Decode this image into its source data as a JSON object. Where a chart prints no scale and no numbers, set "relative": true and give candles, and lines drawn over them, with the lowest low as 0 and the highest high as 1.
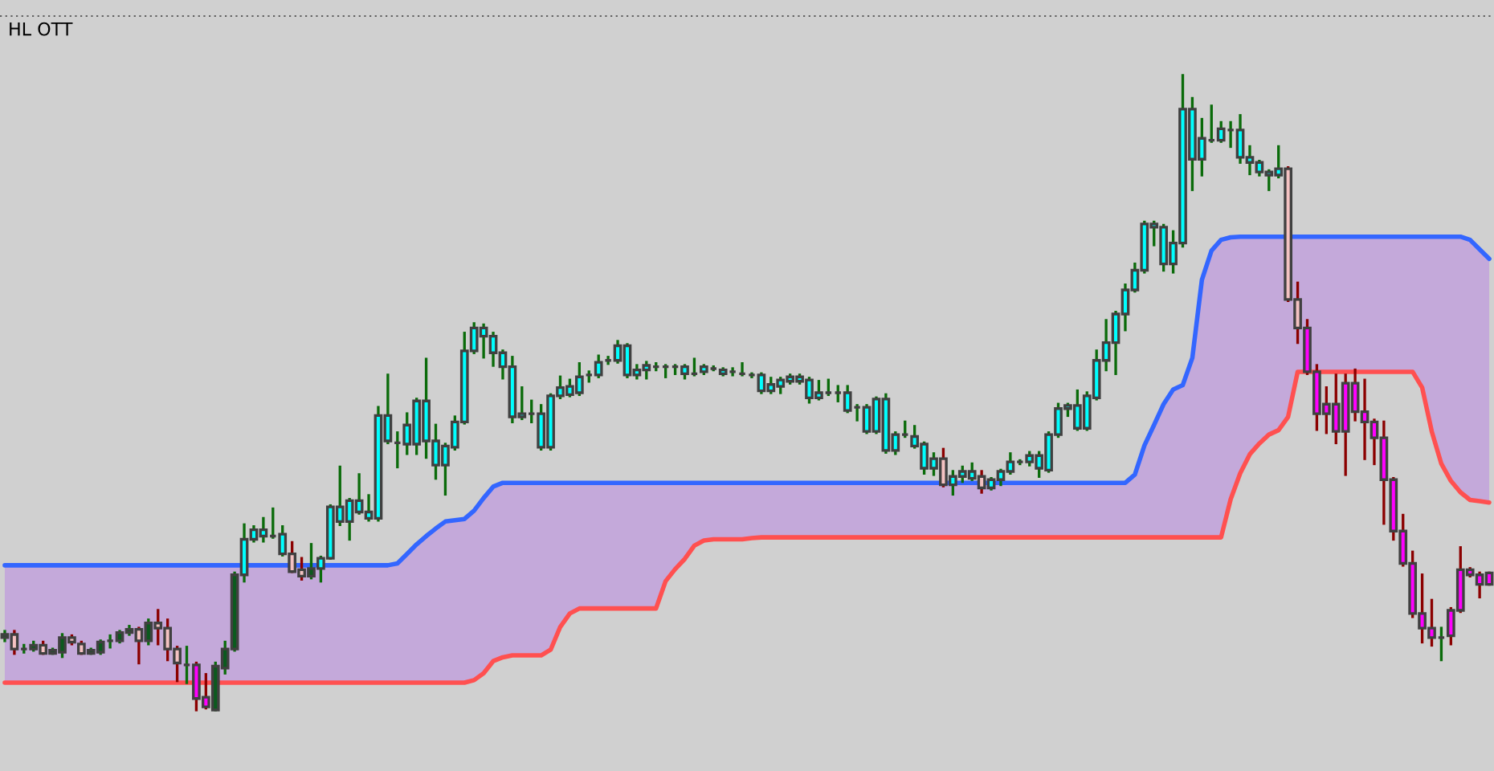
{
  "chart_data": {
    "type": "candlestick",
    "title": "HL OTT",
    "relative": true,
    "categories": [
      null,
      null,
      null,
      null,
      null,
      null,
      null,
      null,
      null,
      null,
      null,
      null,
      null,
      null,
      null,
      null,
      null,
      null,
      null,
      null,
      null,
      null,
      null,
      null,
      null,
      null,
      null,
      null,
      null,
      null,
      null,
      null,
      null,
      null,
      null,
      null,
      null,
      null,
      null,
      null,
      null,
      null,
      null,
      null,
      null,
      null,
      null,
      null,
      null,
      null,
      null,
      null,
      null,
      null,
      null,
      null,
      null,
      null,
      null,
      null,
      null,
      null,
      null,
      null,
      null,
      null,
      null,
      null,
      null,
      null,
      null,
      null,
      null,
      null,
      null,
      null,
      null,
      null,
      null,
      null,
      null,
      null,
      null,
      null,
      null,
      null,
      null,
      null,
      null,
      null,
      null,
      null,
      null,
      null,
      null,
      null,
      null,
      null,
      null,
      null,
      null,
      null,
      null,
      null,
      null,
      null,
      null,
      null,
      null,
      null,
      null,
      null,
      null,
      null,
      null,
      null,
      null,
      null,
      null,
      null,
      null,
      null,
      null,
      null,
      null,
      null,
      null,
      null,
      null,
      null,
      null,
      null,
      null,
      null,
      null,
      null,
      null,
      null,
      null,
      null,
      null,
      null,
      null,
      null,
      null,
      null,
      null,
      null,
      null,
      null,
      null,
      null,
      null,
      null,
      null,
      null
    ],
    "ohlc": [
      [
        0.114,
        0.124,
        0.109,
        0.119
      ],
      [
        0.119,
        0.124,
        0.089,
        0.096
      ],
      [
        0.096,
        0.102,
        0.091,
        0.096
      ],
      [
        0.096,
        0.107,
        0.094,
        0.102
      ],
      [
        0.102,
        0.107,
        0.089,
        0.089
      ],
      [
        0.089,
        0.096,
        0.089,
        0.094
      ],
      [
        0.091,
        0.119,
        0.084,
        0.114
      ],
      [
        0.114,
        0.117,
        0.104,
        0.107
      ],
      [
        0.104,
        0.107,
        0.089,
        0.089
      ],
      [
        0.089,
        0.096,
        0.089,
        0.094
      ],
      [
        0.091,
        0.109,
        0.089,
        0.107
      ],
      [
        0.109,
        0.117,
        0.099,
        0.109
      ],
      [
        0.109,
        0.124,
        0.107,
        0.122
      ],
      [
        0.122,
        0.132,
        0.119,
        0.127
      ],
      [
        0.127,
        0.129,
        0.074,
        0.109
      ],
      [
        0.109,
        0.142,
        0.104,
        0.137
      ],
      [
        0.137,
        0.157,
        0.104,
        0.129
      ],
      [
        0.129,
        0.142,
        0.079,
        0.096
      ],
      [
        0.096,
        0.099,
        0.046,
        0.074
      ],
      [
        0.071,
        0.099,
        0.043,
        0.071
      ],
      [
        0.071,
        0.074,
        0,
        0.018
      ],
      [
        0.02,
        0.056,
        0.003,
        0.005
      ],
      [
        0,
        0.074,
        0,
        0.069
      ],
      [
        0.066,
        0.107,
        0.058,
        0.096
      ],
      [
        0.096,
        0.216,
        0.094,
        0.213
      ],
      [
        0.213,
        0.292,
        0.203,
        0.269
      ],
      [
        0.269,
        0.289,
        0.266,
        0.284
      ],
      [
        0.274,
        0.302,
        0.266,
        0.284
      ],
      [
        0.274,
        0.317,
        0.272,
        0.274
      ],
      [
        0.246,
        0.289,
        0.244,
        0.277
      ],
      [
        0.246,
        0.264,
        0.218,
        0.218
      ],
      [
        0.221,
        0.239,
        0.206,
        0.211
      ],
      [
        0.211,
        0.261,
        0.208,
        0.223
      ],
      [
        0.223,
        0.241,
        0.203,
        0.239
      ],
      [
        0.239,
        0.322,
        0.239,
        0.32
      ],
      [
        0.297,
        0.383,
        0.292,
        0.32
      ],
      [
        0.297,
        0.332,
        0.269,
        0.33
      ],
      [
        0.312,
        0.371,
        0.31,
        0.33
      ],
      [
        0.302,
        0.338,
        0.299,
        0.312
      ],
      [
        0.302,
        0.477,
        0.299,
        0.464
      ],
      [
        0.424,
        0.528,
        0.421,
        0.464
      ],
      [
        0.421,
        0.437,
        0.383,
        0.421
      ],
      [
        0.419,
        0.467,
        0.404,
        0.449
      ],
      [
        0.419,
        0.49,
        0.404,
        0.487
      ],
      [
        0.424,
        0.553,
        0.398,
        0.487
      ],
      [
        0.386,
        0.449,
        0.365,
        0.424
      ],
      [
        0.386,
        0.419,
        0.34,
        0.416
      ],
      [
        0.414,
        0.462,
        0.411,
        0.454
      ],
      [
        0.454,
        0.594,
        0.452,
        0.566
      ],
      [
        0.566,
        0.609,
        0.563,
        0.602
      ],
      [
        0.589,
        0.607,
        0.556,
        0.602
      ],
      [
        0.563,
        0.594,
        0.543,
        0.589
      ],
      [
        0.541,
        0.566,
        0.523,
        0.563
      ],
      [
        0.462,
        0.556,
        0.454,
        0.541
      ],
      [
        0.462,
        0.508,
        0.459,
        0.467
      ],
      [
        0.467,
        0.487,
        0.454,
        0.467
      ],
      [
        0.414,
        0.48,
        0.411,
        0.467
      ],
      [
        0.414,
        0.497,
        0.411,
        0.495
      ],
      [
        0.495,
        0.525,
        0.492,
        0.508
      ],
      [
        0.497,
        0.52,
        0.495,
        0.51
      ],
      [
        0.5,
        0.546,
        0.497,
        0.525
      ],
      [
        0.528,
        0.533,
        0.518,
        0.528
      ],
      [
        0.528,
        0.558,
        0.525,
        0.548
      ],
      [
        0.551,
        0.556,
        0.546,
        0.551
      ],
      [
        0.551,
        0.581,
        0.548,
        0.574
      ],
      [
        0.528,
        0.576,
        0.525,
        0.574
      ],
      [
        0.528,
        0.543,
        0.523,
        0.536
      ],
      [
        0.536,
        0.548,
        0.523,
        0.543
      ],
      [
        0.541,
        0.546,
        0.536,
        0.541
      ],
      [
        0.541,
        0.543,
        0.525,
        0.541
      ],
      [
        0.541,
        0.543,
        0.53,
        0.541
      ],
      [
        0.53,
        0.543,
        0.523,
        0.541
      ],
      [
        0.53,
        0.553,
        0.528,
        0.53
      ],
      [
        0.533,
        0.543,
        0.53,
        0.541
      ],
      [
        0.538,
        0.541,
        0.536,
        0.538
      ],
      [
        0.53,
        0.538,
        0.528,
        0.536
      ],
      [
        0.533,
        0.538,
        0.528,
        0.533
      ],
      [
        0.53,
        0.546,
        0.528,
        0.53
      ],
      [
        0.528,
        0.53,
        0.525,
        0.528
      ],
      [
        0.503,
        0.53,
        0.5,
        0.528
      ],
      [
        0.503,
        0.523,
        0.5,
        0.513
      ],
      [
        0.51,
        0.523,
        0.5,
        0.52
      ],
      [
        0.518,
        0.528,
        0.515,
        0.525
      ],
      [
        0.518,
        0.528,
        0.515,
        0.525
      ],
      [
        0.492,
        0.523,
        0.485,
        0.52
      ],
      [
        0.492,
        0.518,
        0.49,
        0.5
      ],
      [
        0.5,
        0.52,
        0.497,
        0.5
      ],
      [
        0.5,
        0.51,
        0.487,
        0.5
      ],
      [
        0.472,
        0.51,
        0.47,
        0.5
      ],
      [
        0.477,
        0.48,
        0.457,
        0.477
      ],
      [
        0.439,
        0.48,
        0.437,
        0.477
      ],
      [
        0.439,
        0.492,
        0.437,
        0.49
      ],
      [
        0.409,
        0.497,
        0.406,
        0.49
      ],
      [
        0.409,
        0.437,
        0.404,
        0.434
      ],
      [
        0.434,
        0.454,
        0.431,
        0.434
      ],
      [
        0.416,
        0.447,
        0.414,
        0.431
      ],
      [
        0.381,
        0.421,
        0.373,
        0.419
      ],
      [
        0.381,
        0.404,
        0.371,
        0.396
      ],
      [
        0.396,
        0.411,
        0.353,
        0.355
      ],
      [
        0.355,
        0.376,
        0.34,
        0.368
      ],
      [
        0.368,
        0.383,
        0.36,
        0.376
      ],
      [
        0.365,
        0.388,
        0.363,
        0.376
      ],
      [
        0.368,
        0.376,
        0.343,
        0.35
      ],
      [
        0.35,
        0.365,
        0.348,
        0.363
      ],
      [
        0.363,
        0.378,
        0.355,
        0.376
      ],
      [
        0.376,
        0.404,
        0.373,
        0.391
      ],
      [
        0.391,
        0.393,
        0.388,
        0.391
      ],
      [
        0.391,
        0.406,
        0.386,
        0.401
      ],
      [
        0.381,
        0.406,
        0.368,
        0.401
      ],
      [
        0.378,
        0.437,
        0.376,
        0.434
      ],
      [
        0.434,
        0.482,
        0.431,
        0.475
      ],
      [
        0.475,
        0.482,
        0.464,
        0.48
      ],
      [
        0.444,
        0.503,
        0.442,
        0.48
      ],
      [
        0.444,
        0.5,
        0.442,
        0.495
      ],
      [
        0.492,
        0.566,
        0.49,
        0.551
      ],
      [
        0.551,
        0.614,
        0.536,
        0.579
      ],
      [
        0.579,
        0.627,
        0.53,
        0.624
      ],
      [
        0.624,
        0.67,
        0.599,
        0.662
      ],
      [
        0.662,
        0.703,
        0.66,
        0.693
      ],
      [
        0.693,
        0.769,
        0.69,
        0.766
      ],
      [
        0.761,
        0.769,
        0.733,
        0.766
      ],
      [
        0.703,
        0.764,
        0.693,
        0.761
      ],
      [
        0.703,
        0.754,
        0.69,
        0.736
      ],
      [
        0.736,
        1,
        0.731,
        0.947
      ],
      [
        0.868,
        0.964,
        0.82,
        0.947
      ],
      [
        0.868,
        0.931,
        0.843,
        0.901
      ],
      [
        0.898,
        0.952,
        0.896,
        0.898
      ],
      [
        0.898,
        0.926,
        0.896,
        0.916
      ],
      [
        0.914,
        0.926,
        0.888,
        0.914
      ],
      [
        0.871,
        0.937,
        0.863,
        0.914
      ],
      [
        0.863,
        0.888,
        0.845,
        0.871
      ],
      [
        0.848,
        0.865,
        0.843,
        0.863
      ],
      [
        0.843,
        0.85,
        0.82,
        0.848
      ],
      [
        0.843,
        0.888,
        0.84,
        0.853
      ],
      [
        0.853,
        0.855,
        0.645,
        0.647
      ],
      [
        0.647,
        0.673,
        0.579,
        0.602
      ],
      [
        0.602,
        0.614,
        0.53,
        0.533
      ],
      [
        0.533,
        0.543,
        0.442,
        0.467
      ],
      [
        0.482,
        0.508,
        0.437,
        0.467
      ],
      [
        0.482,
        0.528,
        0.421,
        0.439
      ],
      [
        0.515,
        0.528,
        0.371,
        0.439
      ],
      [
        0.515,
        0.536,
        0.457,
        0.47
      ],
      [
        0.47,
        0.52,
        0.396,
        0.454
      ],
      [
        0.454,
        0.457,
        0.388,
        0.429
      ],
      [
        0.429,
        0.454,
        0.294,
        0.363
      ],
      [
        0.363,
        0.365,
        0.269,
        0.282
      ],
      [
        0.282,
        0.307,
        0.228,
        0.231
      ],
      [
        0.231,
        0.249,
        0.147,
        0.152
      ],
      [
        0.152,
        0.213,
        0.107,
        0.129
      ],
      [
        0.129,
        0.173,
        0.102,
        0.114
      ],
      [
        0.114,
        0.129,
        0.079,
        0.114
      ],
      [
        0.157,
        0.16,
        0.104,
        0.117
      ],
      [
        0.221,
        0.256,
        0.155,
        0.157
      ],
      [
        0.221,
        0.223,
        0.211,
        0.213
      ],
      [
        0.213,
        0.216,
        0.178,
        0.198
      ],
      [
        0.216,
        0.216,
        0.198,
        0.198
      ]
    ],
    "colors": [
      "#0b5a1e",
      "#f4c2c2",
      "#404040",
      "#0b5a1e",
      "#f4c2c2",
      "#0b5a1e",
      "#0b5a1e",
      "#f4c2c2",
      "#f4c2c2",
      "#0b5a1e",
      "#0b5a1e",
      "#404040",
      "#0b5a1e",
      "#0b5a1e",
      "#f4c2c2",
      "#0b5a1e",
      "#f4c2c2",
      "#f4c2c2",
      "#f4c2c2",
      "#404040",
      "#ff00ff",
      "#ff00ff",
      "#0b5a1e",
      "#0b5a1e",
      "#0b5a1e",
      "#00ffff",
      "#00ffff",
      "#00ffff",
      "#404040",
      "#00ffff",
      "#f4c2c2",
      "#f4c2c2",
      "#0b5a1e",
      "#00ffff",
      "#00ffff",
      "#00ffff",
      "#00ffff",
      "#00ffff",
      "#00ffff",
      "#00ffff",
      "#00ffff",
      "#404040",
      "#00ffff",
      "#00ffff",
      "#00ffff",
      "#00ffff",
      "#00ffff",
      "#00ffff",
      "#00ffff",
      "#00ffff",
      "#00ffff",
      "#00ffff",
      "#00ffff",
      "#00ffff",
      "#00ffff",
      "#404040",
      "#00ffff",
      "#00ffff",
      "#00ffff",
      "#00ffff",
      "#00ffff",
      "#404040",
      "#00ffff",
      "#404040",
      "#00ffff",
      "#00ffff",
      "#00ffff",
      "#00ffff",
      "#404040",
      "#404040",
      "#404040",
      "#00ffff",
      "#404040",
      "#00ffff",
      "#404040",
      "#00ffff",
      "#404040",
      "#404040",
      "#404040",
      "#00ffff",
      "#00ffff",
      "#00ffff",
      "#00ffff",
      "#00ffff",
      "#00ffff",
      "#00ffff",
      "#404040",
      "#404040",
      "#00ffff",
      "#404040",
      "#00ffff",
      "#00ffff",
      "#00ffff",
      "#00ffff",
      "#404040",
      "#00ffff",
      "#00ffff",
      "#00ffff",
      "#f4c2c2",
      "#00ffff",
      "#00ffff",
      "#00ffff",
      "#f4c2c2",
      "#00ffff",
      "#00ffff",
      "#00ffff",
      "#404040",
      "#00ffff",
      "#00ffff",
      "#00ffff",
      "#00ffff",
      "#00ffff",
      "#00ffff",
      "#00ffff",
      "#00ffff",
      "#00ffff",
      "#00ffff",
      "#00ffff",
      "#00ffff",
      "#00ffff",
      "#00ffff",
      "#00ffff",
      "#00ffff",
      "#00ffff",
      "#00ffff",
      "#00ffff",
      "#404040",
      "#00ffff",
      "#404040",
      "#00ffff",
      "#00ffff",
      "#00ffff",
      "#00ffff",
      "#00ffff",
      "#f4c2c2",
      "#f4c2c2",
      "#ff00ff",
      "#ff00ff",
      "#ff00ff",
      "#ff00ff",
      "#ff00ff",
      "#ff00ff",
      "#ff00ff",
      "#ff00ff",
      "#ff00ff",
      "#ff00ff",
      "#ff00ff",
      "#ff00ff",
      "#ff00ff",
      "#ff00ff",
      "#404040",
      "#ff00ff",
      "#ff00ff",
      "#ff00ff",
      "#ff00ff",
      "#ff00ff"
    ],
    "series": [
      {
        "type": "line",
        "color": "#3366ff",
        "values": [
          0.228,
          0.228,
          0.228,
          0.228,
          0.228,
          0.228,
          0.228,
          0.228,
          0.228,
          0.228,
          0.228,
          0.228,
          0.228,
          0.228,
          0.228,
          0.228,
          0.228,
          0.228,
          0.228,
          0.228,
          0.228,
          0.228,
          0.228,
          0.228,
          0.228,
          0.228,
          0.228,
          0.228,
          0.228,
          0.228,
          0.228,
          0.228,
          0.228,
          0.228,
          0.228,
          0.228,
          0.228,
          0.228,
          0.228,
          0.228,
          0.228,
          0.231,
          0.246,
          0.261,
          0.274,
          0.286,
          0.297,
          0.299,
          0.301,
          0.314,
          0.334,
          0.352,
          0.358,
          0.358,
          0.358,
          0.358,
          0.358,
          0.358,
          0.358,
          0.358,
          0.358,
          0.358,
          0.358,
          0.358,
          0.358,
          0.358,
          0.358,
          0.358,
          0.358,
          0.358,
          0.358,
          0.358,
          0.358,
          0.358,
          0.358,
          0.358,
          0.358,
          0.358,
          0.358,
          0.358,
          0.358,
          0.358,
          0.358,
          0.358,
          0.358,
          0.358,
          0.358,
          0.358,
          0.358,
          0.358,
          0.358,
          0.358,
          0.358,
          0.358,
          0.358,
          0.358,
          0.358,
          0.358,
          0.358,
          0.358,
          0.358,
          0.358,
          0.358,
          0.358,
          0.358,
          0.358,
          0.358,
          0.358,
          0.358,
          0.358,
          0.358,
          0.358,
          0.358,
          0.358,
          0.358,
          0.358,
          0.358,
          0.358,
          0.371,
          0.417,
          0.449,
          0.482,
          0.505,
          0.512,
          0.555,
          0.678,
          0.724,
          0.741,
          0.745,
          0.746,
          0.746,
          0.746,
          0.746,
          0.746,
          0.746,
          0.746,
          0.746,
          0.746,
          0.746,
          0.746,
          0.746,
          0.746,
          0.746,
          0.746,
          0.746,
          0.746,
          0.746,
          0.746,
          0.746,
          0.746,
          0.746,
          0.746,
          0.746,
          0.741,
          0.726,
          0.711
        ],
        "upper": [
          0.228,
          0.228,
          0.228,
          0.228,
          0.228,
          0.228,
          0.228,
          0.228,
          0.228,
          0.228,
          0.228,
          0.228,
          0.228,
          0.228,
          0.228,
          0.228,
          0.228,
          0.228,
          0.228,
          0.228,
          0.228,
          0.228,
          0.228,
          0.228,
          0.228,
          0.228,
          0.228,
          0.228,
          0.228,
          0.228,
          0.228,
          0.228,
          0.228,
          0.228,
          0.228,
          0.228,
          0.228,
          0.228,
          0.228,
          0.228,
          0.228,
          0.231,
          0.246,
          0.261,
          0.274,
          0.286,
          0.297,
          0.299,
          0.301,
          0.314,
          0.334,
          0.352,
          0.358,
          0.358,
          0.358,
          0.358,
          0.358,
          0.358,
          0.358,
          0.358,
          0.358,
          0.358,
          0.358,
          0.358,
          0.358,
          0.358,
          0.358,
          0.358,
          0.358,
          0.358,
          0.358,
          0.358,
          0.358,
          0.358,
          0.358,
          0.358,
          0.358,
          0.358,
          0.358,
          0.358,
          0.358,
          0.358,
          0.358,
          0.358,
          0.358,
          0.358,
          0.358,
          0.358,
          0.358,
          0.358,
          0.358,
          0.358,
          0.358,
          0.358,
          0.358,
          0.358,
          0.358,
          0.358,
          0.358,
          0.358,
          0.358,
          0.358,
          0.358,
          0.358,
          0.358,
          0.358,
          0.358,
          0.358,
          0.358,
          0.358,
          0.358,
          0.358,
          0.358,
          0.358,
          0.358,
          0.358,
          0.358,
          0.358,
          0.371,
          0.417,
          0.449,
          0.482,
          0.505,
          0.512,
          0.555,
          0.678,
          0.724,
          0.741,
          0.745,
          0.746,
          0.746,
          0.746,
          0.746,
          0.746,
          0.746,
          0.746,
          0.746,
          0.746,
          0.746,
          0.746,
          0.746,
          0.746,
          0.746,
          0.746,
          0.746,
          0.746,
          0.746,
          0.746,
          0.746,
          0.746,
          0.746,
          0.746,
          0.746,
          0.741,
          0.726,
          0.711
        ],
        "lower": [
          0.043,
          0.043,
          0.043,
          0.043,
          0.043,
          0.043,
          0.043,
          0.043,
          0.043,
          0.043,
          0.043,
          0.043,
          0.043,
          0.043,
          0.043,
          0.043,
          0.043,
          0.043,
          0.043,
          0.043,
          0.043,
          0.043,
          0.043,
          0.043,
          0.043,
          0.043,
          0.043,
          0.043,
          0.043,
          0.043,
          0.043,
          0.043,
          0.043,
          0.043,
          0.043,
          0.043,
          0.043,
          0.043,
          0.043,
          0.043,
          0.043,
          0.043,
          0.043,
          0.043,
          0.043,
          0.043,
          0.043,
          0.043,
          0.043,
          0.047,
          0.058,
          0.077,
          0.083,
          0.086,
          0.086,
          0.086,
          0.086,
          0.095,
          0.131,
          0.152,
          0.16,
          0.16,
          0.16,
          0.16,
          0.16,
          0.16,
          0.16,
          0.16,
          0.16,
          0.203,
          0.222,
          0.238,
          0.259,
          0.267,
          0.269,
          0.269,
          0.269,
          0.269,
          0.271,
          0.272,
          0.272,
          0.272,
          0.272,
          0.272,
          0.272,
          0.272,
          0.272,
          0.272,
          0.272,
          0.272,
          0.272,
          0.272,
          0.272,
          0.272,
          0.272,
          0.272,
          0.272,
          0.272,
          0.272,
          0.272,
          0.272,
          0.272,
          0.272,
          0.272,
          0.272,
          0.272,
          0.272,
          0.272,
          0.272,
          0.272,
          0.272,
          0.272,
          0.272,
          0.272,
          0.272,
          0.272,
          0.272,
          0.272,
          0.272,
          0.272,
          0.272,
          0.272,
          0.272,
          0.272,
          0.272,
          0.272,
          0.272,
          0.272,
          0.332,
          0.373,
          0.403,
          0.42,
          0.434,
          0.441,
          0.462,
          0.533,
          0.533,
          0.533,
          0.533,
          0.533,
          0.533,
          0.533,
          0.533,
          0.533,
          0.533,
          0.533,
          0.533,
          0.533,
          0.508,
          0.439,
          0.388,
          0.361,
          0.343,
          0.331,
          0.329,
          0.327
        ]
      },
      {
        "type": "line",
        "color": "#ff5050",
        "values": [
          0.043,
          0.043,
          0.043,
          0.043,
          0.043,
          0.043,
          0.043,
          0.043,
          0.043,
          0.043,
          0.043,
          0.043,
          0.043,
          0.043,
          0.043,
          0.043,
          0.043,
          0.043,
          0.043,
          0.043,
          0.043,
          0.043,
          0.043,
          0.043,
          0.043,
          0.043,
          0.043,
          0.043,
          0.043,
          0.043,
          0.043,
          0.043,
          0.043,
          0.043,
          0.043,
          0.043,
          0.043,
          0.043,
          0.043,
          0.043,
          0.043,
          0.043,
          0.043,
          0.043,
          0.043,
          0.043,
          0.043,
          0.043,
          0.043,
          0.047,
          0.058,
          0.077,
          0.083,
          0.086,
          0.086,
          0.086,
          0.086,
          0.095,
          0.131,
          0.152,
          0.16,
          0.16,
          0.16,
          0.16,
          0.16,
          0.16,
          0.16,
          0.16,
          0.16,
          0.203,
          0.222,
          0.238,
          0.259,
          0.267,
          0.269,
          0.269,
          0.269,
          0.269,
          0.271,
          0.272,
          0.272,
          0.272,
          0.272,
          0.272,
          0.272,
          0.272,
          0.272,
          0.272,
          0.272,
          0.272,
          0.272,
          0.272,
          0.272,
          0.272,
          0.272,
          0.272,
          0.272,
          0.272,
          0.272,
          0.272,
          0.272,
          0.272,
          0.272,
          0.272,
          0.272,
          0.272,
          0.272,
          0.272,
          0.272,
          0.272,
          0.272,
          0.272,
          0.272,
          0.272,
          0.272,
          0.272,
          0.272,
          0.272,
          0.272,
          0.272,
          0.272,
          0.272,
          0.272,
          0.272,
          0.272,
          0.272,
          0.272,
          0.272,
          0.332,
          0.373,
          0.403,
          0.42,
          0.434,
          0.441,
          0.462,
          0.533,
          0.533,
          0.533,
          0.533,
          0.533,
          0.533,
          0.533,
          0.533,
          0.533,
          0.533,
          0.533,
          0.533,
          0.533,
          0.508,
          0.439,
          0.388,
          0.361,
          0.343,
          0.331,
          0.329,
          0.327
        ]
      }
    ]
  }
}
